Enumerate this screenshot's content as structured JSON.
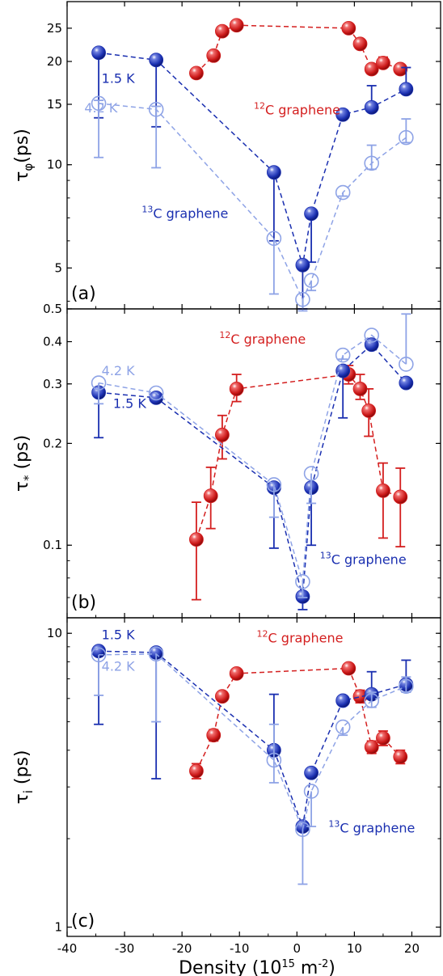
{
  "chart_data": {
    "type": "scatter",
    "x_axis": {
      "label": "Density (10",
      "label_exp": "15",
      "label_tail": " m",
      "label_exp2": "-2",
      "label_close": ")",
      "xlim": [
        -40,
        25
      ],
      "ticks": [
        -40,
        -30,
        -20,
        -10,
        0,
        10,
        20
      ],
      "tick_labels": [
        "-40",
        "-30",
        "-20",
        "-10",
        "0",
        "10",
        "20"
      ]
    },
    "colors": {
      "c12": "#d41f1f",
      "c13_15K": "#1a2fb0",
      "c13_42K": "#8ea3e6"
    },
    "panels": [
      {
        "id": "a",
        "panel_label": "(a)",
        "ylabel_main": "τ",
        "ylabel_sub": "φ",
        "ylabel_tail": "(ps)",
        "yscale": "log",
        "ylim": [
          3.8,
          28
        ],
        "yticks": [
          5,
          10,
          15,
          20,
          25
        ],
        "ytick_labels": [
          "5",
          "10",
          "15",
          "20",
          "25"
        ],
        "annotations": [
          {
            "id": "t15",
            "pre": "",
            "sup": "",
            "text": "1.5 K",
            "color": "c13_15K",
            "x": -34,
            "y": 17.3
          },
          {
            "id": "t42",
            "pre": "",
            "sup": "",
            "text": "4.2 K",
            "color": "c13_42K",
            "x": -37,
            "y": 14.2
          },
          {
            "id": "c12",
            "pre": "",
            "sup": "12",
            "text": "C graphene",
            "color": "c12",
            "x": -7.5,
            "y": 14.0
          },
          {
            "id": "c13",
            "pre": "",
            "sup": "13",
            "text": "C graphene",
            "color": "c13_15K",
            "x": -27,
            "y": 7.0
          }
        ],
        "series": [
          {
            "id": "c12",
            "color": "c12",
            "style": "filled",
            "x": [
              -17.5,
              -14.5,
              -13,
              -10.5,
              9,
              11,
              13,
              15,
              18
            ],
            "y": [
              18.5,
              20.8,
              24.5,
              25.5,
              25,
              22.5,
              19,
              19.8,
              19
            ],
            "yerr_low": [
              0.6,
              0.6,
              0,
              0,
              0,
              0,
              0.6,
              0.6,
              0.6
            ],
            "yerr_high": [
              0.4,
              0.3,
              0.2,
              0.2,
              0.3,
              0.4,
              0.6,
              0.8,
              0.4
            ]
          },
          {
            "id": "k15",
            "color": "c13_15K",
            "style": "filled",
            "x": [
              -34.5,
              -24.5,
              -4,
              1,
              2.5,
              8,
              13,
              19
            ],
            "y": [
              21.2,
              20.2,
              9.5,
              5.1,
              7.2,
              14,
              14.7,
              16.6
            ],
            "yerr_low": [
              7.5,
              7.3,
              3.5,
              1.3,
              2,
              0,
              0,
              0
            ],
            "yerr_high": [
              0.3,
              0.3,
              0,
              0,
              0,
              0,
              2.3,
              2.6
            ]
          },
          {
            "id": "k42",
            "color": "c13_42K",
            "style": "open",
            "x": [
              -34.5,
              -24.5,
              -4,
              1,
              2.5,
              8,
              13,
              19
            ],
            "y": [
              15.1,
              14.5,
              6.1,
              4.05,
              4.6,
              8.3,
              10.1,
              12
            ],
            "yerr_low": [
              4.6,
              4.7,
              1.9,
              0.3,
              0.3,
              0.2,
              0.4,
              0.4
            ],
            "yerr_high": [
              0.3,
              0.3,
              0,
              0,
              0,
              0,
              1.3,
              1.6
            ]
          }
        ]
      },
      {
        "id": "b",
        "panel_label": "(b)",
        "ylabel_main": "τ",
        "ylabel_sub": "*",
        "ylabel_tail": " (ps)",
        "yscale": "log",
        "ylim": [
          0.061,
          0.5
        ],
        "yticks": [
          0.1,
          0.2,
          0.3,
          0.4,
          0.5
        ],
        "ytick_labels": [
          "0.1",
          "0.2",
          "0.3",
          "0.4",
          "0.5"
        ],
        "annotations": [
          {
            "id": "t42",
            "pre": "",
            "sup": "",
            "text": "4.2 K",
            "color": "c13_42K",
            "x": -34,
            "y": 0.318
          },
          {
            "id": "t15",
            "pre": "",
            "sup": "",
            "text": "1.5 K",
            "color": "c13_15K",
            "x": -32,
            "y": 0.255
          },
          {
            "id": "c12",
            "pre": "",
            "sup": "12",
            "text": "C graphene",
            "color": "c12",
            "x": -13.5,
            "y": 0.395
          },
          {
            "id": "c13",
            "pre": "",
            "sup": "13",
            "text": "C graphene",
            "color": "c13_15K",
            "x": 4,
            "y": 0.088
          }
        ],
        "series": [
          {
            "id": "c12",
            "color": "c12",
            "style": "filled",
            "x": [
              -17.5,
              -15,
              -13,
              -10.5,
              9,
              11,
              12.5,
              15,
              18
            ],
            "y": [
              0.104,
              0.14,
              0.212,
              0.29,
              0.32,
              0.29,
              0.25,
              0.145,
              0.139
            ],
            "yerr_low": [
              0.035,
              0.028,
              0.032,
              0.024,
              0.02,
              0.02,
              0.04,
              0.04,
              0.04
            ],
            "yerr_high": [
              0.03,
              0.03,
              0.03,
              0.03,
              0.02,
              0.03,
              0.04,
              0.03,
              0.03
            ]
          },
          {
            "id": "k15",
            "color": "c13_15K",
            "style": "filled",
            "x": [
              -34.5,
              -24.5,
              -4,
              1,
              2.5,
              8,
              13,
              19
            ],
            "y": [
              0.283,
              0.273,
              0.148,
              0.0705,
              0.148,
              0.328,
              0.392,
              0.302
            ],
            "yerr_low": [
              0.075,
              0,
              0.05,
              0.006,
              0.048,
              0.09,
              0,
              0
            ],
            "yerr_high": [
              0,
              0,
              0,
              0,
              0,
              0,
              0,
              0
            ]
          },
          {
            "id": "k42",
            "color": "c13_42K",
            "style": "open",
            "x": [
              -34.5,
              -24.5,
              -4,
              1,
              2.5,
              8,
              13,
              19
            ],
            "y": [
              0.302,
              0.282,
              0.151,
              0.078,
              0.163,
              0.365,
              0.418,
              0.343
            ],
            "yerr_low": [
              0.04,
              0,
              0.03,
              0.008,
              0.03,
              0.01,
              0,
              0
            ],
            "yerr_high": [
              0,
              0,
              0,
              0,
              0,
              0,
              0,
              0.14
            ]
          }
        ]
      },
      {
        "id": "c",
        "panel_label": "(c)",
        "ylabel_main": "τ",
        "ylabel_sub": "i",
        "ylabel_tail": " (ps)",
        "yscale": "log",
        "ylim": [
          0.93,
          10.6
        ],
        "yticks": [
          1,
          10
        ],
        "ytick_labels": [
          "1",
          "10"
        ],
        "annotations": [
          {
            "id": "t15",
            "pre": "",
            "sup": "",
            "text": "1.5 K",
            "color": "c13_15K",
            "x": -34,
            "y": 9.55
          },
          {
            "id": "t42",
            "pre": "",
            "sup": "",
            "text": "4.2 K",
            "color": "c13_42K",
            "x": -34,
            "y": 7.45
          },
          {
            "id": "c12",
            "pre": "",
            "sup": "12",
            "text": "C graphene",
            "color": "c12",
            "x": -7,
            "y": 9.3
          },
          {
            "id": "c13",
            "pre": "",
            "sup": "13",
            "text": "C graphene",
            "color": "c13_15K",
            "x": 5.5,
            "y": 2.1
          }
        ],
        "series": [
          {
            "id": "c12",
            "color": "c12",
            "style": "filled",
            "x": [
              -17.5,
              -14.5,
              -13,
              -10.5,
              9,
              11,
              13,
              15,
              18
            ],
            "y": [
              3.4,
              4.5,
              6.1,
              7.3,
              7.6,
              6.1,
              4.1,
              4.4,
              3.8
            ],
            "yerr_low": [
              0.2,
              0.2,
              0,
              0,
              0,
              0.3,
              0.2,
              0.25,
              0.2
            ],
            "yerr_high": [
              0.2,
              0.2,
              0,
              0,
              0,
              0.3,
              0.2,
              0.25,
              0.2
            ]
          },
          {
            "id": "k15",
            "color": "c13_15K",
            "style": "filled",
            "x": [
              -34.5,
              -24.5,
              -4,
              1,
              2.5,
              8,
              13,
              19
            ],
            "y": [
              8.7,
              8.6,
              4.0,
              2.2,
              3.35,
              5.9,
              6.2,
              6.7
            ],
            "yerr_low": [
              3.8,
              5.4,
              0,
              0,
              0,
              0,
              0,
              0
            ],
            "yerr_high": [
              0,
              0,
              2.2,
              0,
              0,
              0,
              1.2,
              1.4
            ]
          },
          {
            "id": "k42",
            "color": "c13_42K",
            "style": "open",
            "x": [
              -34.5,
              -24.5,
              -4,
              1,
              2.5,
              8,
              13,
              19
            ],
            "y": [
              8.45,
              8.5,
              3.7,
              2.15,
              2.9,
              4.8,
              5.9,
              6.6
            ],
            "yerr_low": [
              2.3,
              3.5,
              0.6,
              0.75,
              0.7,
              0.3,
              0.3,
              0.3
            ],
            "yerr_high": [
              0,
              0,
              1.2,
              0,
              0,
              0,
              0.4,
              0.5
            ]
          }
        ]
      }
    ]
  }
}
